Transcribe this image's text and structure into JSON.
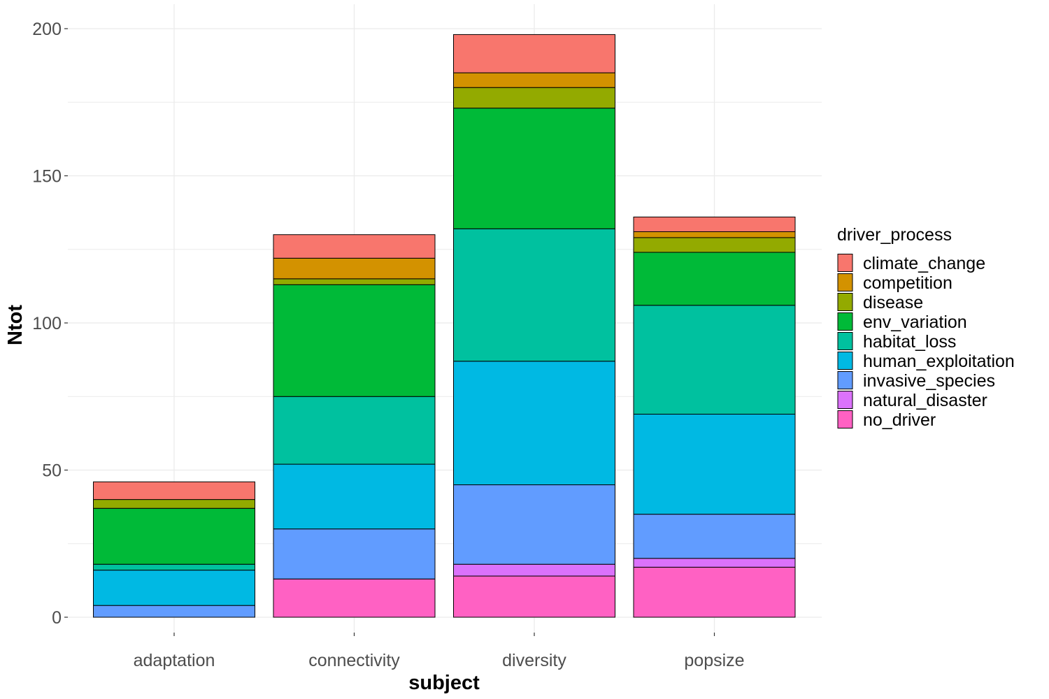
{
  "chart_data": {
    "type": "bar",
    "stacked": true,
    "xlabel": "subject",
    "ylabel": "Ntot",
    "ylim": [
      0,
      200
    ],
    "y_ticks": [
      "0",
      "50",
      "100",
      "150",
      "200"
    ],
    "grid": true,
    "legend_title": "driver_process",
    "legend_position": "right",
    "categories": [
      "adaptation",
      "connectivity",
      "diversity",
      "popsize"
    ],
    "series": [
      {
        "name": "climate_change",
        "color": "#F8766D",
        "values": [
          6,
          8,
          13,
          5
        ]
      },
      {
        "name": "competition",
        "color": "#D39200",
        "values": [
          0,
          7,
          5,
          2
        ]
      },
      {
        "name": "disease",
        "color": "#93AA00",
        "values": [
          3,
          2,
          7,
          5
        ]
      },
      {
        "name": "env_variation",
        "color": "#00BA38",
        "values": [
          19,
          38,
          41,
          18
        ]
      },
      {
        "name": "habitat_loss",
        "color": "#00C19F",
        "values": [
          2,
          23,
          45,
          37
        ]
      },
      {
        "name": "human_exploitation",
        "color": "#00B9E3",
        "values": [
          12,
          22,
          42,
          34
        ]
      },
      {
        "name": "invasive_species",
        "color": "#619CFF",
        "values": [
          4,
          17,
          27,
          15
        ]
      },
      {
        "name": "natural_disaster",
        "color": "#DB72FB",
        "values": [
          0,
          0,
          4,
          3
        ]
      },
      {
        "name": "no_driver",
        "color": "#FF61C3",
        "values": [
          0,
          13,
          14,
          17
        ]
      }
    ]
  }
}
